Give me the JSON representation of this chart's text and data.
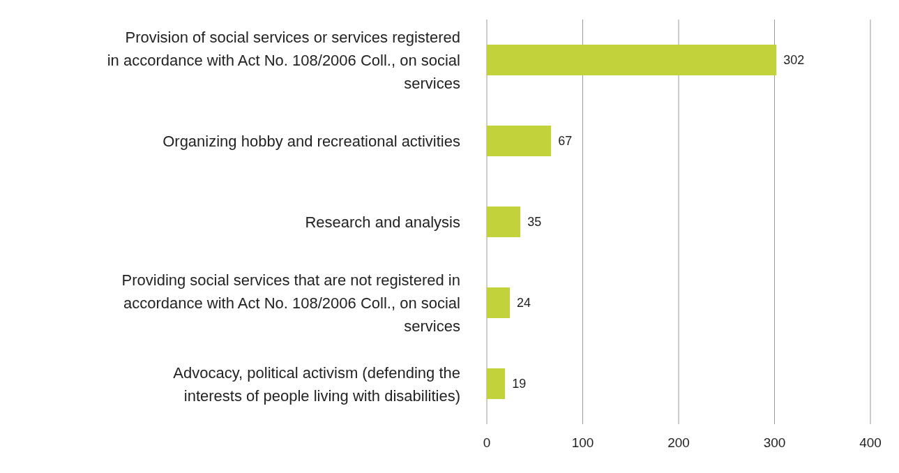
{
  "chart_data": {
    "type": "bar",
    "orientation": "horizontal",
    "categories": [
      "Provision of social services or services registered in accordance with Act No. 108/2006 Coll., on social services",
      "Organizing hobby and recreational activities",
      "Research and analysis",
      "Providing social services that are not registered in accordance with Act No. 108/2006 Coll., on social services",
      "Advocacy, political activism (defending the interests of people living with disabilities)"
    ],
    "values": [
      302,
      67,
      35,
      24,
      19
    ],
    "color": "#c2d23a",
    "data_labels": true,
    "xlim": [
      0,
      400
    ],
    "xticks": [
      0,
      100,
      200,
      300,
      400
    ],
    "grid": "x"
  }
}
